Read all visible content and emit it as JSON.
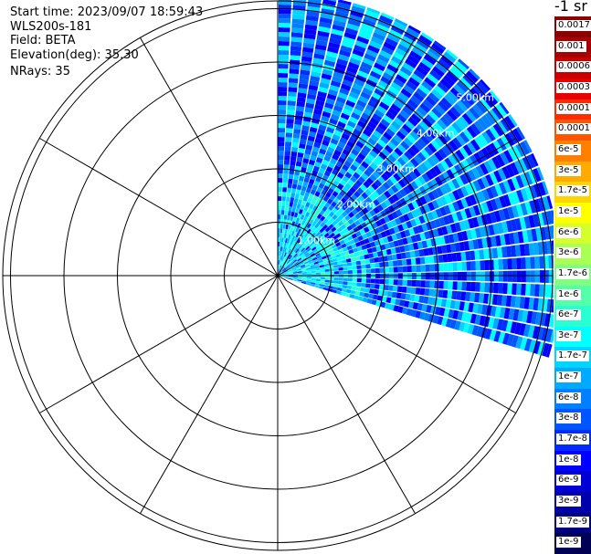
{
  "header": {
    "start_time": "Start time: 2023/09/07 18:59:43",
    "instrument": "WLS200s-181",
    "field": "Field: BETA",
    "elevation": "Elevation(deg): 35.30",
    "nrays": "NRays: 35"
  },
  "colorbar": {
    "unit_label": "-1 sr",
    "levels": [
      {
        "label": "0.0017",
        "color": "#8b0000"
      },
      {
        "label": "0.001",
        "color": "#a80000"
      },
      {
        "label": "0.0006",
        "color": "#c80000"
      },
      {
        "label": "0.0003",
        "color": "#e80000"
      },
      {
        "label": "0.00017",
        "color": "#ff2a00"
      },
      {
        "label": "0.0001",
        "color": "#ff5500"
      },
      {
        "label": "6e-5",
        "color": "#ff8000"
      },
      {
        "label": "3e-5",
        "color": "#ffaa00"
      },
      {
        "label": "1.7e-5",
        "color": "#ffd400"
      },
      {
        "label": "1e-5",
        "color": "#ffff00"
      },
      {
        "label": "6e-6",
        "color": "#d4ff2a"
      },
      {
        "label": "3e-6",
        "color": "#aaff55"
      },
      {
        "label": "1.7e-6",
        "color": "#80ff80"
      },
      {
        "label": "1e-6",
        "color": "#55ffaa"
      },
      {
        "label": "6e-7",
        "color": "#2affd4"
      },
      {
        "label": "3e-7",
        "color": "#00ffff"
      },
      {
        "label": "1.7e-7",
        "color": "#00d4ff"
      },
      {
        "label": "1e-7",
        "color": "#00aaff"
      },
      {
        "label": "6e-8",
        "color": "#0080ff"
      },
      {
        "label": "3e-8",
        "color": "#0055ff"
      },
      {
        "label": "1.7e-8",
        "color": "#002aff"
      },
      {
        "label": "1e-8",
        "color": "#0000ff"
      },
      {
        "label": "6e-9",
        "color": "#0000d4"
      },
      {
        "label": "3e-9",
        "color": "#0000aa"
      },
      {
        "label": "1.7e-9",
        "color": "#000080"
      },
      {
        "label": "1e-9",
        "color": "#000055"
      }
    ]
  },
  "chart_data": {
    "type": "heatmap",
    "projection": "polar-ppi",
    "field": "BETA",
    "azimuth_start_deg": 0,
    "azimuth_end_deg": 107,
    "n_rays": 35,
    "range_rings_km": [
      1,
      2,
      3,
      4,
      5
    ],
    "ring_labels": [
      "1.00km",
      "2.00km",
      "3.00km",
      "4.00km",
      "5.00km"
    ],
    "max_range_km": 5.3,
    "spoke_interval_deg": 30,
    "dominant_level_range": [
      "1e-8",
      "3e-7"
    ],
    "near_range_level_range": [
      "1e-7",
      "6e-7"
    ]
  }
}
